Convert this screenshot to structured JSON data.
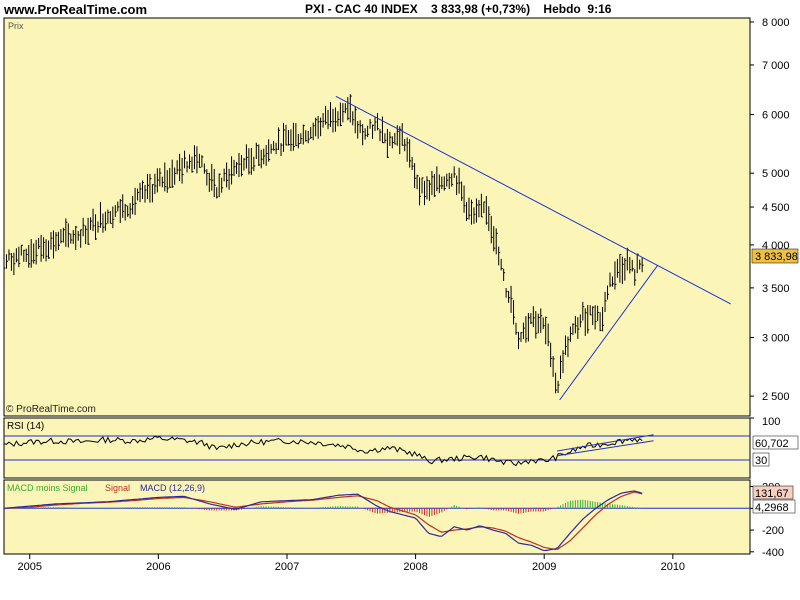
{
  "header": {
    "site": "www.ProRealTime.com",
    "title": "PXI - CAC 40 INDEX    3 833,98 (+0,73%)    Hebdo  9:16"
  },
  "colors": {
    "panel_bg": "#fbf6b8",
    "price_bars": "#000000",
    "trendline": "#1f2fd0",
    "rsi_line": "#000000",
    "macd_line": "#2a2aa0",
    "signal_line": "#c03020",
    "hist_pos": "#33b033",
    "hist_neg": "#d03030",
    "last_price_box": "#f0c040"
  },
  "price_panel": {
    "label": "Prix",
    "watermark": "© ProRealTime.com",
    "last_value_label": "3 833,98",
    "y_ticks": [
      "8 000",
      "7 000",
      "6 000",
      "5 000",
      "4 500",
      "4 000",
      "3 500",
      "3 000",
      "2 500"
    ]
  },
  "rsi_panel": {
    "label": "RSI (14)",
    "y_ticks": [
      "100"
    ],
    "level_high": 70,
    "level_low": 30,
    "level_low_label": "30",
    "last_value_label": "60,702"
  },
  "macd_panel": {
    "label_macd_minus_signal": "MACD moins Signal",
    "label_signal": "Signal",
    "label_macd": "MACD (12,26,9)",
    "y_ticks": [
      "200",
      "0",
      "-200",
      "-400"
    ],
    "macd_last_label": "131,67",
    "hist_last_label": "4,2968"
  },
  "x_axis": {
    "ticks": [
      "2005",
      "2006",
      "2007",
      "2008",
      "2009",
      "2010"
    ]
  },
  "chart_data": [
    {
      "type": "line",
      "title": "PXI - CAC 40 INDEX",
      "ylabel": "Prix",
      "scale": "log",
      "ylim": [
        2350,
        8100
      ],
      "xlim": [
        2004.8,
        2010.6
      ],
      "x": [
        2004.8,
        2005.0,
        2005.2,
        2005.4,
        2005.6,
        2005.8,
        2006.0,
        2006.15,
        2006.3,
        2006.4,
        2006.45,
        2006.6,
        2006.8,
        2007.0,
        2007.15,
        2007.3,
        2007.4,
        2007.5,
        2007.55,
        2007.6,
        2007.7,
        2007.8,
        2007.9,
        2008.0,
        2008.05,
        2008.15,
        2008.25,
        2008.3,
        2008.4,
        2008.45,
        2008.55,
        2008.6,
        2008.7,
        2008.75,
        2008.8,
        2008.9,
        2009.0,
        2009.05,
        2009.1,
        2009.15,
        2009.2,
        2009.3,
        2009.4,
        2009.45,
        2009.5,
        2009.55,
        2009.6,
        2009.65,
        2009.7,
        2009.75,
        2009.78
      ],
      "y": [
        3800,
        3900,
        4050,
        4150,
        4400,
        4550,
        4850,
        5050,
        5300,
        4900,
        4750,
        5100,
        5300,
        5550,
        5650,
        5900,
        6050,
        6050,
        5750,
        5650,
        5800,
        5550,
        5600,
        4950,
        4750,
        4800,
        4950,
        5000,
        4500,
        4350,
        4500,
        4200,
        3500,
        3350,
        3000,
        3200,
        3100,
        2900,
        2550,
        2850,
        3000,
        3200,
        3250,
        3150,
        3550,
        3650,
        3750,
        3800,
        3650,
        3800,
        3834
      ],
      "trendlines": [
        {
          "from": [
            2007.38,
            6350
          ],
          "to": [
            2010.45,
            3330
          ]
        },
        {
          "from": [
            2009.12,
            2470
          ],
          "to": [
            2009.88,
            3750
          ]
        }
      ]
    },
    {
      "type": "line",
      "title": "RSI (14)",
      "ylim": [
        0,
        100
      ],
      "xlim": [
        2004.8,
        2010.6
      ],
      "x": [
        2004.8,
        2005.0,
        2005.2,
        2005.4,
        2005.6,
        2005.8,
        2006.0,
        2006.2,
        2006.35,
        2006.45,
        2006.6,
        2006.8,
        2007.0,
        2007.2,
        2007.4,
        2007.5,
        2007.6,
        2007.8,
        2008.0,
        2008.1,
        2008.3,
        2008.5,
        2008.7,
        2008.8,
        2008.9,
        2009.0,
        2009.1,
        2009.3,
        2009.5,
        2009.7,
        2009.78
      ],
      "y": [
        55,
        60,
        62,
        60,
        64,
        62,
        66,
        63,
        58,
        48,
        56,
        60,
        62,
        60,
        55,
        52,
        45,
        50,
        40,
        28,
        32,
        36,
        25,
        24,
        30,
        28,
        35,
        52,
        58,
        66,
        60.7
      ]
    },
    {
      "type": "line",
      "title": "MACD (12,26,9)",
      "ylim": [
        -420,
        260
      ],
      "xlim": [
        2004.8,
        2010.6
      ],
      "x": [
        2004.8,
        2005.0,
        2005.2,
        2005.4,
        2005.6,
        2005.8,
        2006.0,
        2006.2,
        2006.4,
        2006.6,
        2006.8,
        2007.0,
        2007.2,
        2007.4,
        2007.55,
        2007.7,
        2007.8,
        2008.0,
        2008.1,
        2008.2,
        2008.3,
        2008.4,
        2008.5,
        2008.6,
        2008.7,
        2008.8,
        2008.9,
        2009.0,
        2009.1,
        2009.2,
        2009.3,
        2009.4,
        2009.5,
        2009.6,
        2009.7,
        2009.78
      ],
      "series": [
        {
          "name": "MACD (12,26,9)",
          "values": [
            0,
            20,
            40,
            50,
            60,
            80,
            100,
            110,
            40,
            -10,
            60,
            70,
            80,
            120,
            130,
            20,
            -30,
            -90,
            -230,
            -260,
            -170,
            -200,
            -160,
            -200,
            -230,
            -320,
            -340,
            -390,
            -370,
            -230,
            -100,
            0,
            80,
            140,
            160,
            131.67
          ]
        },
        {
          "name": "Signal",
          "values": [
            0,
            10,
            30,
            45,
            55,
            70,
            90,
            100,
            60,
            10,
            40,
            60,
            75,
            100,
            115,
            70,
            10,
            -60,
            -150,
            -220,
            -200,
            -190,
            -170,
            -180,
            -210,
            -270,
            -310,
            -360,
            -380,
            -300,
            -180,
            -60,
            40,
            110,
            150,
            127
          ]
        },
        {
          "name": "MACD moins Signal",
          "values": [
            0,
            10,
            10,
            5,
            5,
            10,
            10,
            10,
            -20,
            -20,
            20,
            10,
            5,
            20,
            15,
            -50,
            -40,
            -30,
            -80,
            -40,
            30,
            -10,
            10,
            -20,
            -20,
            -50,
            -30,
            -30,
            10,
            70,
            80,
            60,
            40,
            30,
            10,
            4.3
          ]
        }
      ]
    }
  ]
}
